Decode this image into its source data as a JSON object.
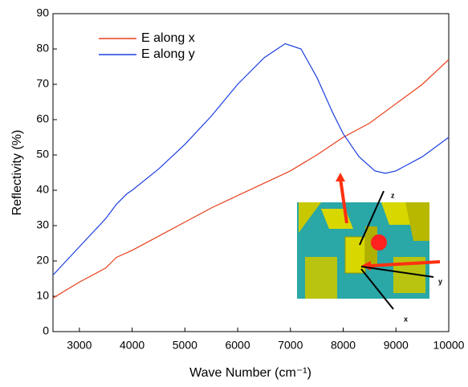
{
  "chart_data": {
    "type": "line",
    "x_label": "Wave Number (cm⁻¹)",
    "y_label": "Reflectivity (%)",
    "xlim": [
      2500,
      10000
    ],
    "xticks": [
      3000,
      4000,
      5000,
      6000,
      7000,
      8000,
      9000,
      10000
    ],
    "ylim": [
      0,
      90
    ],
    "yticks": [
      0,
      10,
      20,
      30,
      40,
      50,
      60,
      70,
      80,
      90
    ],
    "legend": "upper-left",
    "series": [
      {
        "name": "E along x",
        "color": "#e8401c",
        "x": [
          2500,
          3000,
          3500,
          3700,
          4000,
          4500,
          5000,
          5500,
          6000,
          6500,
          7000,
          7500,
          8000,
          8500,
          9000,
          9500,
          10000
        ],
        "values": [
          9.5,
          14,
          18,
          21,
          23,
          27,
          31,
          35,
          38.5,
          42,
          45.5,
          50,
          55,
          59,
          64.5,
          70,
          77
        ]
      },
      {
        "name": "E along y",
        "color": "#1c3fe0",
        "x": [
          2500,
          3000,
          3500,
          3700,
          3900,
          4000,
          4500,
          5000,
          5500,
          6000,
          6500,
          6900,
          7200,
          7500,
          7800,
          8000,
          8300,
          8600,
          8800,
          9000,
          9500,
          10000
        ],
        "values": [
          16,
          24,
          32,
          36,
          39,
          40,
          46,
          53,
          61,
          70,
          77.5,
          81.5,
          80,
          72,
          62,
          56,
          49.5,
          45.5,
          44.8,
          45.5,
          49.5,
          55
        ]
      }
    ],
    "annotations": [
      "z",
      "y",
      "x"
    ]
  }
}
